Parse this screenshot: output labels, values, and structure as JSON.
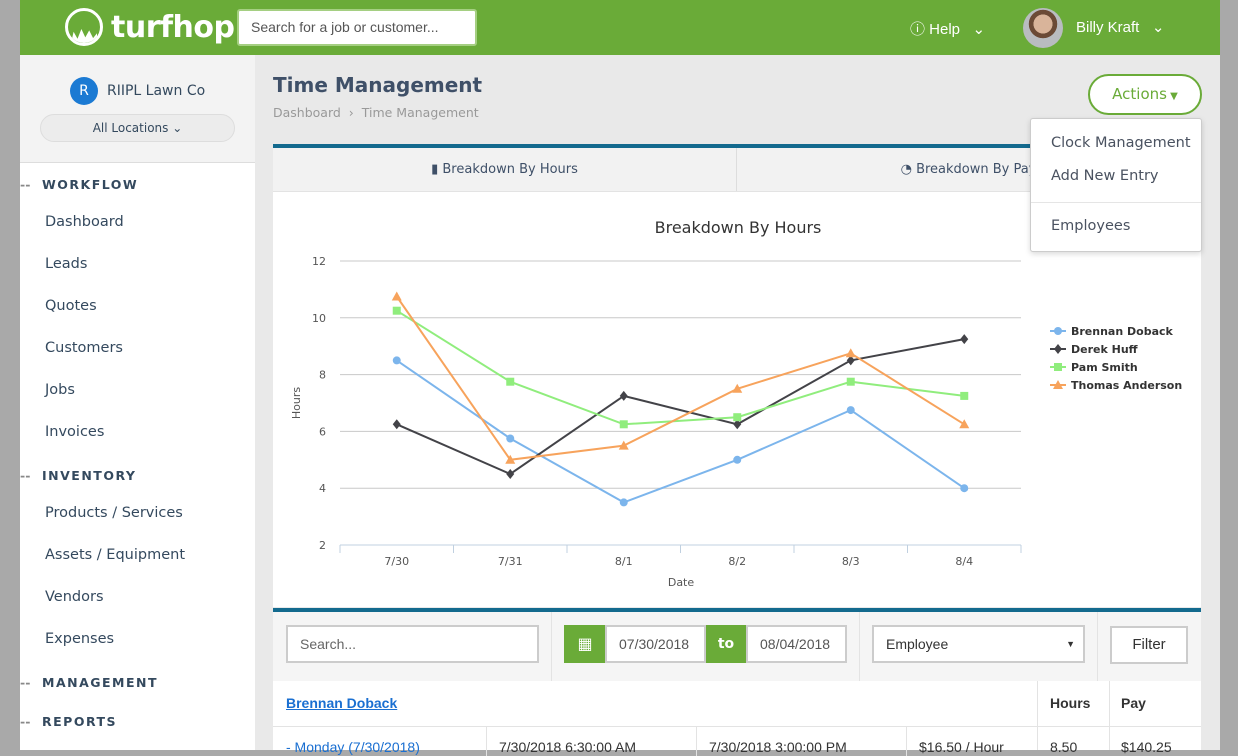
{
  "header": {
    "brand": "turfhop",
    "search_placeholder": "Search for a job or customer...",
    "help": "Help",
    "user": "Billy Kraft"
  },
  "sidebar": {
    "company_initial": "R",
    "company": "RIIPL Lawn Co",
    "location": "All Locations",
    "sections": [
      {
        "title": "WORKFLOW",
        "items": [
          "Dashboard",
          "Leads",
          "Quotes",
          "Customers",
          "Jobs",
          "Invoices"
        ]
      },
      {
        "title": "INVENTORY",
        "items": [
          "Products / Services",
          "Assets / Equipment",
          "Vendors",
          "Expenses"
        ]
      },
      {
        "title": "MANAGEMENT",
        "items": []
      },
      {
        "title": "REPORTS",
        "items": []
      }
    ]
  },
  "page": {
    "title": "Time Management",
    "breadcrumb": [
      "Dashboard",
      "Time Management"
    ],
    "actions": "Actions",
    "actions_menu": [
      "Clock Management",
      "Add New Entry",
      "Employees"
    ],
    "tabs": [
      "Breakdown By Hours",
      "Breakdown By Pay"
    ]
  },
  "chart_data": {
    "type": "line",
    "title": "Breakdown By Hours",
    "xlabel": "Date",
    "ylabel": "Hours",
    "ylim": [
      2,
      12
    ],
    "yticks": [
      2,
      4,
      6,
      8,
      10,
      12
    ],
    "grid": true,
    "legend": "right",
    "categories": [
      "7/30",
      "7/31",
      "8/1",
      "8/2",
      "8/3",
      "8/4"
    ],
    "series": [
      {
        "name": "Brennan Doback",
        "color": "#7cb5ec",
        "marker": "circle",
        "values": [
          8.5,
          5.75,
          3.5,
          5,
          6.75,
          4
        ]
      },
      {
        "name": "Derek Huff",
        "color": "#434348",
        "marker": "diamond",
        "values": [
          6.25,
          4.5,
          7.25,
          6.25,
          8.5,
          9.25
        ]
      },
      {
        "name": "Pam Smith",
        "color": "#90ed7d",
        "marker": "square",
        "values": [
          10.25,
          7.75,
          6.25,
          6.5,
          7.75,
          7.25
        ]
      },
      {
        "name": "Thomas Anderson",
        "color": "#f7a35c",
        "marker": "triangle",
        "values": [
          10.75,
          5,
          5.5,
          7.5,
          8.75,
          6.25
        ]
      }
    ]
  },
  "filters": {
    "search_placeholder": "Search...",
    "from": "07/30/2018",
    "to_label": "to",
    "to": "08/04/2018",
    "employee": "Employee",
    "filter": "Filter"
  },
  "table": {
    "employee": "Brennan Doback",
    "headers": {
      "hours": "Hours",
      "pay": "Pay"
    },
    "row": {
      "day": "- Monday (7/30/2018)",
      "in": "7/30/2018 6:30:00 AM",
      "out": "7/30/2018 3:00:00 PM",
      "rate": "$16.50 / Hour",
      "hours": "8.50",
      "pay": "$140.25"
    }
  }
}
